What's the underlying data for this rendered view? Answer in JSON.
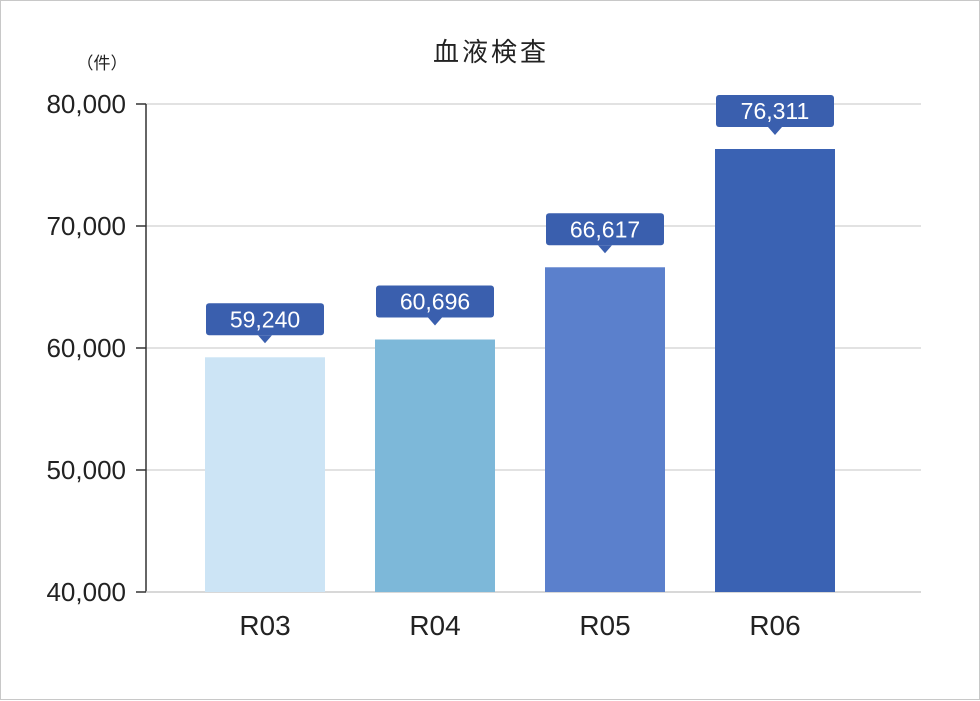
{
  "chart_data": {
    "type": "bar",
    "title": "血液検査",
    "unit_label": "（件）",
    "categories": [
      "R03",
      "R04",
      "R05",
      "R06"
    ],
    "values": [
      59240,
      60696,
      66617,
      76311
    ],
    "value_labels": [
      "59,240",
      "60,696",
      "66,617",
      "76,311"
    ],
    "ylim": [
      40000,
      80000
    ],
    "yticks": [
      40000,
      50000,
      60000,
      70000,
      80000
    ],
    "ytick_labels": [
      "40,000",
      "50,000",
      "60,000",
      "70,000",
      "80,000"
    ],
    "bar_colors": [
      "#cce4f5",
      "#7db8d9",
      "#5b80cc",
      "#3a62b3"
    ],
    "label_color": "#3a5fae",
    "grid": true,
    "legend": "none"
  }
}
